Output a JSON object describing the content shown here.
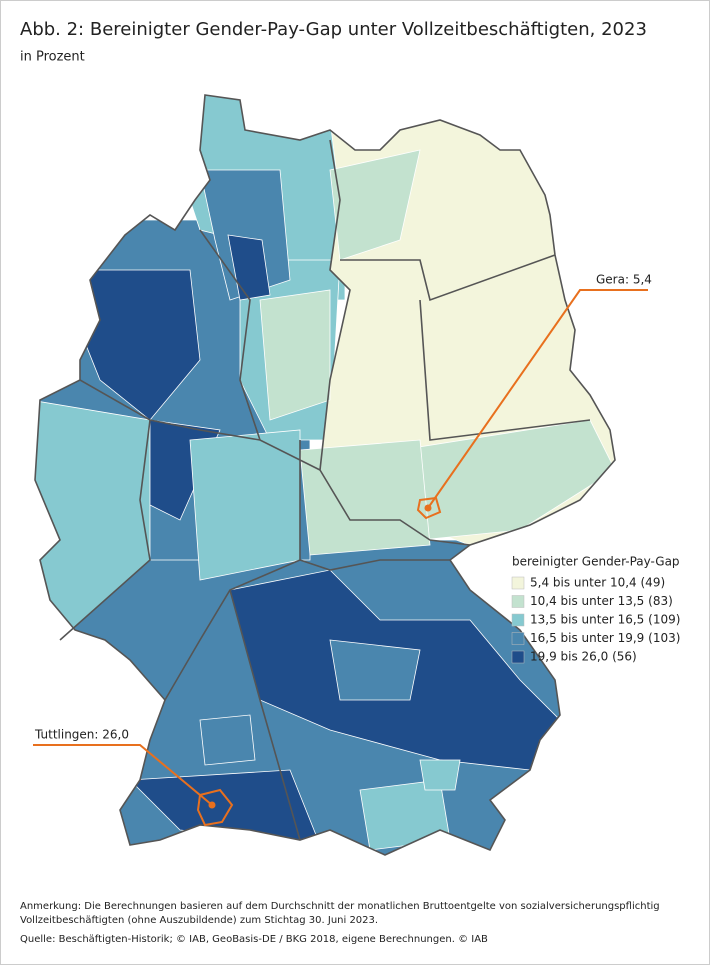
{
  "header": {
    "title": "Abb. 2: Bereinigter Gender-Pay-Gap unter Vollzeitbeschäftigten, 2023",
    "subtitle": "in Prozent"
  },
  "legend": {
    "title": "bereinigter Gender-Pay-Gap",
    "items": [
      {
        "label": "5,4 bis unter 10,4 (49)",
        "color": "#f3f5dc"
      },
      {
        "label": "10,4  bis unter 13,5 (83)",
        "color": "#c3e2cf"
      },
      {
        "label": "13,5 bis unter 16,5 (109)",
        "color": "#86c9d0"
      },
      {
        "label": "16,5 bis unter 19,9 (103)",
        "color": "#4a86ae"
      },
      {
        "label": "19,9 bis 26,0 (56)",
        "color": "#1f4d8a"
      }
    ]
  },
  "annotations": [
    {
      "label": "Gera: 5,4",
      "color": "#e8701e"
    },
    {
      "label": "Tuttlingen: 26,0",
      "color": "#e8701e"
    }
  ],
  "footer": {
    "note": [
      "Anmerkung: Die Berechnungen basieren auf dem Durchschnitt der monatlichen Bruttoentgelte von sozialversicherungspflichtig",
      "Vollzeitbeschäftigten (ohne Auszubildende) zum Stichtag 30. Juni 2023."
    ],
    "source": "Quelle: Beschäftigten-Historik; © IAB, GeoBasis-DE / BKG 2018, eigene Berechnungen.   © IAB"
  }
}
